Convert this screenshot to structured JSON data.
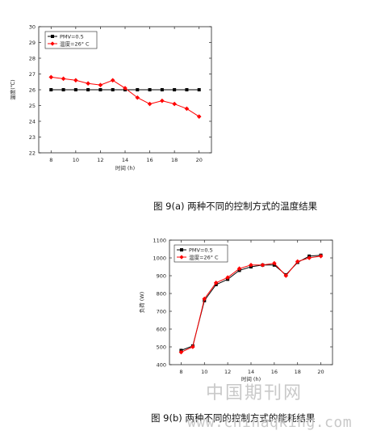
{
  "captions": {
    "fig_a": "图 9(a) 两种不同的控制方式的温度结果",
    "fig_b": "图 9(b) 两种不同的控制方式的能耗结果"
  },
  "watermark": {
    "cn": "中国期刊网",
    "url": "www.chinaqking.com"
  },
  "chart_data": [
    {
      "type": "line",
      "title": "",
      "xlabel": "时间 (h)",
      "ylabel": "温度(℃)",
      "xlim": [
        7,
        21
      ],
      "ylim": [
        22,
        30
      ],
      "xticks": [
        8,
        10,
        12,
        14,
        16,
        18,
        20
      ],
      "yticks": [
        22,
        23,
        24,
        25,
        26,
        27,
        28,
        29,
        30
      ],
      "legend_position": "top-left",
      "grid": false,
      "series": [
        {
          "name": "PMV=0.5",
          "color": "#000000",
          "marker": "square",
          "x": [
            8,
            9,
            10,
            11,
            12,
            13,
            14,
            15,
            16,
            17,
            18,
            19,
            20
          ],
          "values": [
            26.0,
            26.0,
            26.0,
            26.0,
            26.0,
            26.0,
            26.0,
            26.0,
            26.0,
            26.0,
            26.0,
            26.0,
            26.0
          ]
        },
        {
          "name": "温度=26° C",
          "color": "#ff0000",
          "marker": "diamond",
          "x": [
            8,
            9,
            10,
            11,
            12,
            13,
            14,
            15,
            16,
            17,
            18,
            19,
            20
          ],
          "values": [
            26.8,
            26.7,
            26.6,
            26.4,
            26.3,
            26.6,
            26.1,
            25.5,
            25.1,
            25.3,
            25.1,
            24.8,
            24.3
          ]
        }
      ]
    },
    {
      "type": "line",
      "title": "",
      "xlabel": "时间 (h)",
      "ylabel": "负荷 (W)",
      "xlim": [
        7,
        21
      ],
      "ylim": [
        400,
        1100
      ],
      "xticks": [
        8,
        10,
        12,
        14,
        16,
        18,
        20
      ],
      "yticks": [
        400,
        500,
        600,
        700,
        800,
        900,
        1000,
        1100
      ],
      "legend_position": "top-left",
      "grid": false,
      "series": [
        {
          "name": "PMV=0.5",
          "color": "#000000",
          "marker": "square",
          "x": [
            8,
            9,
            10,
            11,
            12,
            13,
            14,
            15,
            16,
            17,
            18,
            19,
            20
          ],
          "values": [
            480,
            505,
            760,
            850,
            880,
            930,
            950,
            960,
            960,
            905,
            975,
            1010,
            1015
          ]
        },
        {
          "name": "温度=26° C",
          "color": "#ff0000",
          "marker": "diamond",
          "x": [
            8,
            9,
            10,
            11,
            12,
            13,
            14,
            15,
            16,
            17,
            18,
            19,
            20
          ],
          "values": [
            470,
            500,
            770,
            860,
            890,
            940,
            960,
            960,
            970,
            900,
            980,
            1000,
            1010
          ]
        }
      ]
    }
  ]
}
